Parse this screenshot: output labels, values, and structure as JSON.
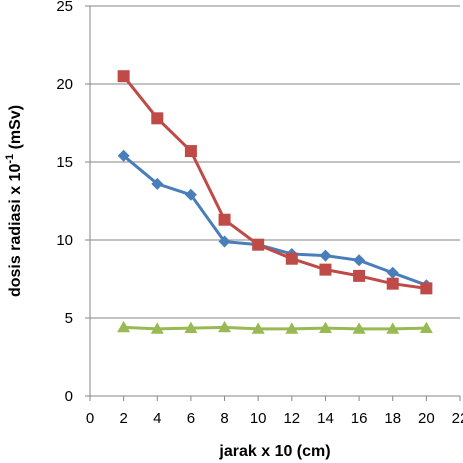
{
  "chart_data": {
    "type": "line",
    "title": "",
    "xlabel": "jarak x 10 (cm)",
    "ylabel": {
      "prefix": "dosis radiasi x 10",
      "exponent": "-1",
      "suffix": " (mSv)"
    },
    "xlim": [
      0,
      22
    ],
    "ylim": [
      0,
      25
    ],
    "xticks": [
      0,
      2,
      4,
      6,
      8,
      10,
      12,
      14,
      16,
      18,
      20,
      22
    ],
    "yticks": [
      0,
      5,
      10,
      15,
      20,
      25
    ],
    "grid": "horizontal",
    "legend": "none",
    "x": [
      2,
      4,
      6,
      8,
      10,
      12,
      14,
      16,
      18,
      20
    ],
    "series": [
      {
        "marker": "diamond",
        "color": "#4A7EBB",
        "values": [
          15.4,
          13.6,
          12.9,
          9.9,
          9.7,
          9.1,
          9.0,
          8.7,
          7.9,
          7.1
        ]
      },
      {
        "marker": "square",
        "color": "#BE4B48",
        "values": [
          20.5,
          17.8,
          15.7,
          11.3,
          9.7,
          8.8,
          8.1,
          7.7,
          7.2,
          6.9
        ]
      },
      {
        "marker": "triangle",
        "color": "#98B954",
        "values": [
          4.4,
          4.3,
          4.35,
          4.4,
          4.3,
          4.3,
          4.35,
          4.3,
          4.3,
          4.35
        ]
      }
    ]
  }
}
